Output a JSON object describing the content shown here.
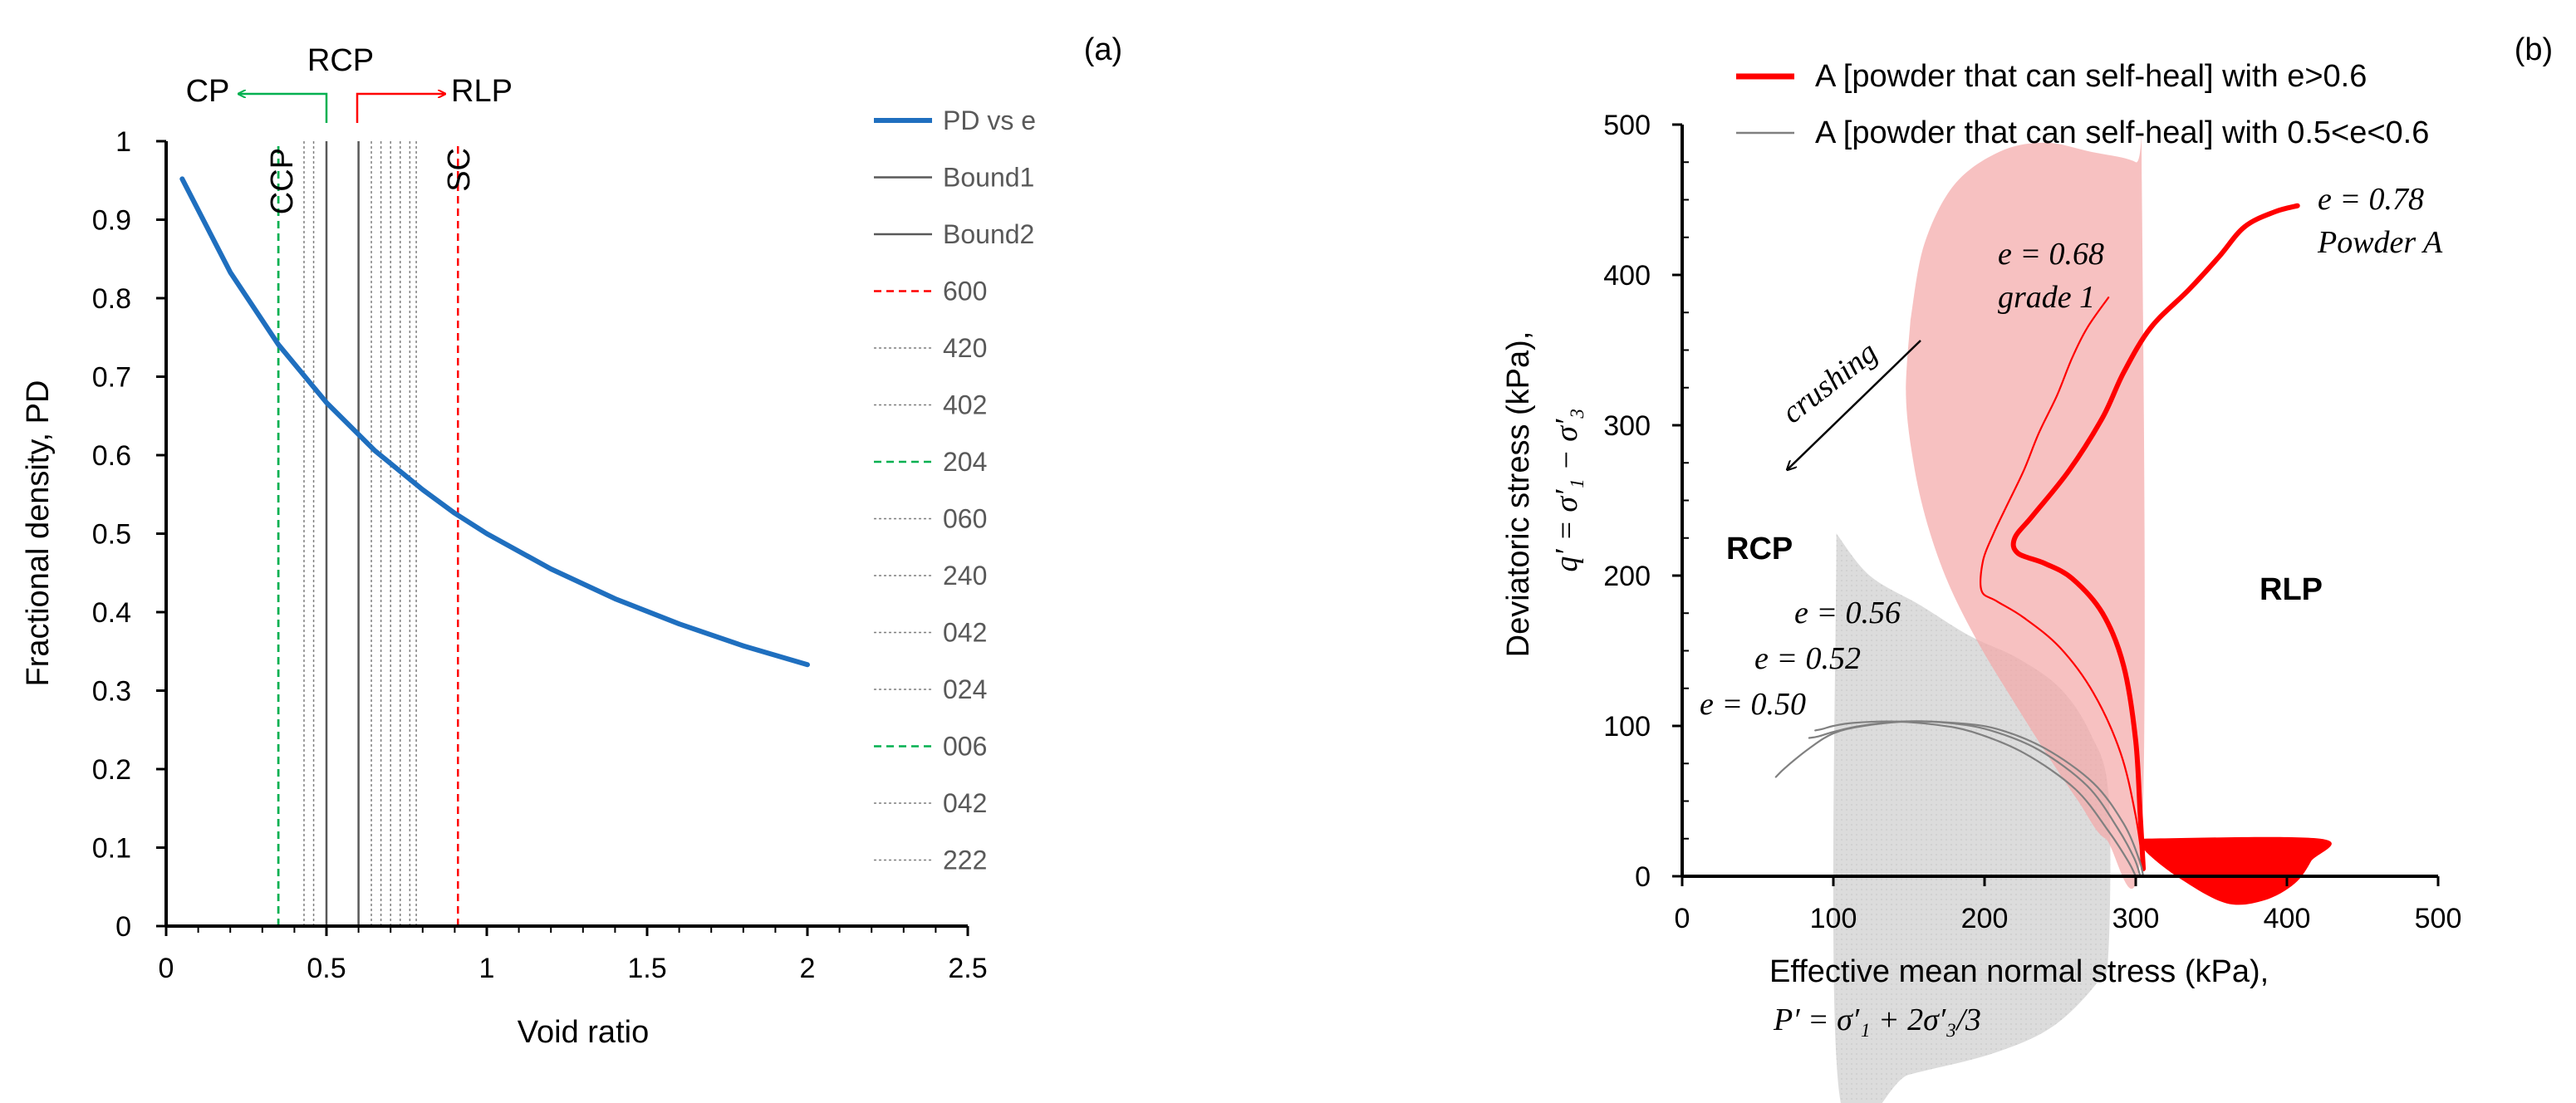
{
  "chart_data": [
    {
      "id": "a",
      "panel_label": "(a)",
      "type": "line",
      "xlabel": "Void ratio",
      "ylabel": "Fractional density, PD",
      "xlim": [
        0,
        2.5
      ],
      "ylim": [
        0,
        1
      ],
      "xticks": [
        "0",
        "0.5",
        "1",
        "1.5",
        "2",
        "2.5"
      ],
      "yticks": [
        "0",
        "0.1",
        "0.2",
        "0.3",
        "0.4",
        "0.5",
        "0.6",
        "0.7",
        "0.8",
        "0.9",
        "1"
      ],
      "curve": {
        "name": "PD vs e",
        "color": "#1f6fbf",
        "x": [
          0.05,
          0.2,
          0.35,
          0.5,
          0.65,
          0.8,
          0.9,
          1.0,
          1.2,
          1.4,
          1.6,
          1.8,
          2.0
        ],
        "y": [
          0.952,
          0.833,
          0.741,
          0.667,
          0.606,
          0.556,
          0.526,
          0.5,
          0.455,
          0.417,
          0.385,
          0.357,
          0.333
        ]
      },
      "vlines": [
        {
          "name": "Bound1",
          "x": 0.5,
          "style": "solid",
          "color": "#595959"
        },
        {
          "name": "Bound2",
          "x": 0.6,
          "style": "solid",
          "color": "#595959"
        },
        {
          "name": "600",
          "x": 0.91,
          "style": "dashed",
          "color": "#ff0000"
        },
        {
          "name": "420",
          "x": 0.64,
          "style": "dotted",
          "color": "#7f7f7f"
        },
        {
          "name": "402",
          "x": 0.67,
          "style": "dotted",
          "color": "#7f7f7f"
        },
        {
          "name": "204",
          "x": 0.35,
          "style": "dashed",
          "color": "#00b050"
        },
        {
          "name": "060",
          "x": 0.7,
          "style": "dotted",
          "color": "#7f7f7f"
        },
        {
          "name": "240",
          "x": 0.43,
          "style": "dotted",
          "color": "#7f7f7f"
        },
        {
          "name": "042",
          "x": 0.73,
          "style": "dotted",
          "color": "#7f7f7f"
        },
        {
          "name": "024",
          "x": 0.46,
          "style": "dotted",
          "color": "#7f7f7f"
        },
        {
          "name": "006",
          "x": 0.35,
          "style": "dashed",
          "color": "#00b050"
        },
        {
          "name": "042",
          "x": 0.76,
          "style": "dotted",
          "color": "#7f7f7f"
        },
        {
          "name": "222",
          "x": 0.78,
          "style": "dotted",
          "color": "#7f7f7f"
        }
      ],
      "line_labels": [
        {
          "text": "CCP",
          "x": 0.36
        },
        {
          "text": "SC",
          "x": 0.92
        }
      ],
      "top_annotations": {
        "cp": {
          "text": "CP",
          "color": "#00b050"
        },
        "rcp": {
          "text": "RCP",
          "color": "#808080"
        },
        "rlp": {
          "text": "RLP",
          "color": "#ff0000"
        }
      },
      "legend": [
        "PD vs e",
        "Bound1",
        "Bound2",
        "600",
        "420",
        "402",
        "204",
        "060",
        "240",
        "042",
        "024",
        "006",
        "042",
        "222"
      ]
    },
    {
      "id": "b",
      "panel_label": "(b)",
      "type": "line",
      "xlabel": "Effective mean normal stress (kPa),",
      "xlabel_eq": "P′ = σ′₁ + 2σ′₃/3",
      "ylabel": "Deviatoric stress (kPa),",
      "ylabel_eq": "q′ = σ′₁ − σ′₃",
      "xlim": [
        0,
        500
      ],
      "ylim": [
        0,
        500
      ],
      "xticks": [
        "0",
        "100",
        "200",
        "300",
        "400",
        "500"
      ],
      "yticks": [
        "0",
        "100",
        "200",
        "300",
        "400",
        "500"
      ],
      "legend": [
        {
          "text": "A [powder that can self-heal] with e>0.6",
          "color": "#ff0000"
        },
        {
          "text": "A [powder that can self-heal] with 0.5<e<0.6",
          "color": "#808080"
        }
      ],
      "series": [
        {
          "name": "e = 0.78",
          "color": "#ff0000",
          "width": "thick",
          "x": [
            305,
            303,
            300,
            292,
            278,
            258,
            240,
            222,
            220,
            232,
            256,
            278,
            292,
            310,
            335,
            355,
            372,
            392,
            407
          ],
          "y": [
            5,
            40,
            90,
            140,
            175,
            198,
            208,
            215,
            225,
            240,
            270,
            305,
            335,
            365,
            390,
            412,
            432,
            442,
            446
          ]
        },
        {
          "name": "e = 0.68",
          "color": "#ff0000",
          "width": "thin",
          "x": [
            305,
            300,
            290,
            272,
            250,
            226,
            208,
            198,
            199,
            206,
            214,
            226,
            236,
            248,
            258,
            268,
            282
          ],
          "y": [
            5,
            40,
            82,
            122,
            152,
            172,
            183,
            190,
            210,
            228,
            245,
            270,
            295,
            320,
            345,
            365,
            385
          ]
        },
        {
          "name": "e = 0.56",
          "color": "#808080",
          "width": "thin",
          "x": [
            305,
            302,
            292,
            272,
            240,
            208,
            180,
            150,
            120,
            100,
            84,
            68,
            62
          ],
          "y": [
            0,
            12,
            35,
            62,
            85,
            98,
            102,
            103,
            100,
            95,
            85,
            72,
            66
          ]
        },
        {
          "name": "e = 0.52",
          "color": "#808080",
          "width": "thin",
          "x": [
            303,
            299,
            288,
            268,
            236,
            204,
            176,
            146,
            118,
            100,
            90,
            84
          ],
          "y": [
            0,
            12,
            32,
            60,
            84,
            97,
            102,
            103,
            100,
            96,
            93,
            92
          ]
        },
        {
          "name": "e = 0.50",
          "color": "#808080",
          "width": "thin",
          "x": [
            300,
            295,
            282,
            260,
            226,
            192,
            166,
            138,
            113,
            100,
            93,
            88
          ],
          "y": [
            0,
            10,
            30,
            58,
            82,
            96,
            101,
            103,
            102,
            100,
            98,
            97
          ]
        }
      ],
      "regions": {
        "red_zone": {
          "x": [
            151,
            160,
            180,
            210,
            240,
            270,
            300,
            304,
            304,
            280,
            262,
            242,
            220,
            196,
            176,
            162,
            153,
            148,
            151
          ],
          "y": [
            370,
            420,
            460,
            482,
            488,
            482,
            475,
            462,
            25,
            25,
            50,
            80,
            115,
            155,
            195,
            235,
            275,
            320,
            370
          ]
        },
        "gray_zone": {
          "x": [
            102,
            104,
            150,
            205,
            245,
            275,
            282,
            282,
            270,
            250,
            222,
            190,
            158,
            124,
            102
          ],
          "y": [
            228,
            -145,
            -132,
            -118,
            -100,
            -70,
            -50,
            55,
            95,
            125,
            145,
            160,
            180,
            200,
            228
          ]
        },
        "rlp_lens": {
          "x": [
            302,
            308,
            330,
            360,
            385,
            405,
            416,
            422,
            302
          ],
          "y": [
            25,
            15,
            -2,
            -18,
            -16,
            -5,
            10,
            25,
            25
          ]
        }
      },
      "annotations": [
        {
          "text": "e = 0.78",
          "color": "#ff0000"
        },
        {
          "text": "Powder A",
          "color": "#ff0000"
        },
        {
          "text": "e = 0.68",
          "color": "#ff0000"
        },
        {
          "text": "grade 1",
          "color": "#ff0000"
        },
        {
          "text": "crushing",
          "color": "#000000"
        },
        {
          "text": "RCP",
          "color": "#808080"
        },
        {
          "text": "RLP",
          "color": "#ff0000"
        },
        {
          "text": "e = 0.56",
          "color": "#808080"
        },
        {
          "text": "e = 0.52",
          "color": "#808080"
        },
        {
          "text": "e = 0.50",
          "color": "#808080"
        }
      ]
    }
  ]
}
